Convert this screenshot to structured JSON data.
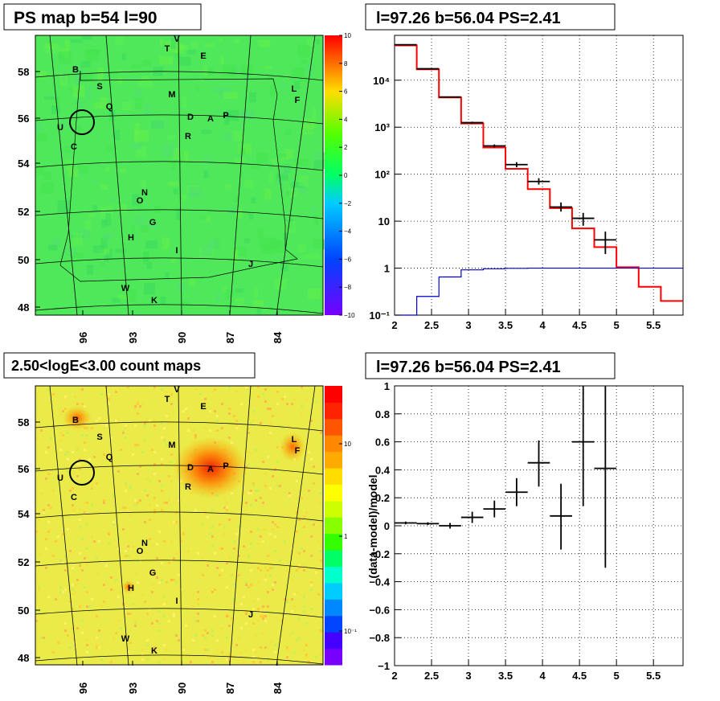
{
  "panels": {
    "tl_title": "PS map b=54 l=90",
    "tr_title": "l=97.26 b=56.04 PS=2.41",
    "bl_title": "2.50<logE<3.00 count maps",
    "br_title": "l=97.26 b=56.04 PS=2.41",
    "br_ylabel": "(data-model)/model"
  },
  "colors": {
    "red": "#ff0000",
    "blue": "#0000cc",
    "black": "#000000",
    "green": "#33ee55",
    "yellow": "#eeee44"
  },
  "maps": {
    "lon_ticks": [
      "96",
      "93",
      "90",
      "87",
      "84"
    ],
    "lat_ticks": [
      "58",
      "56",
      "54",
      "52",
      "50",
      "48"
    ],
    "source_labels": [
      "V",
      "T",
      "E",
      "B",
      "S",
      "M",
      "L",
      "F",
      "Q",
      "D",
      "A",
      "P",
      "U",
      "R",
      "C",
      "N",
      "O",
      "G",
      "H",
      "I",
      "J",
      "W",
      "K"
    ],
    "ps_palette": [
      "10",
      "8",
      "6",
      "4",
      "2",
      "0",
      "−2",
      "−4",
      "−6",
      "−8",
      "−10"
    ],
    "count_palette": [
      "10",
      "1",
      "10⁻¹"
    ]
  },
  "chart_data": [
    {
      "type": "step",
      "title": "l=97.26 b=56.04 PS=2.41",
      "xlabel": "",
      "ylabel": "",
      "xlim": [
        2,
        5.9
      ],
      "ylim": [
        0.1,
        90000
      ],
      "ylog": true,
      "xticks": [
        "2",
        "2.5",
        "3",
        "3.5",
        "4",
        "4.5",
        "5",
        "5.5"
      ],
      "yticks": [
        {
          "v": 0.1,
          "t": "10⁻¹"
        },
        {
          "v": 1,
          "t": "1"
        },
        {
          "v": 10,
          "t": "10"
        },
        {
          "v": 100,
          "t": "10²"
        },
        {
          "v": 1000,
          "t": "10³"
        },
        {
          "v": 10000,
          "t": "10⁴"
        }
      ],
      "grid": true,
      "edges": [
        2.0,
        2.3,
        2.6,
        2.9,
        3.2,
        3.5,
        3.8,
        4.1,
        4.4,
        4.7,
        5.0,
        5.3,
        5.6,
        5.9
      ],
      "series": [
        {
          "color": "red",
          "values": [
            55000,
            17000,
            4300,
            1200,
            370,
            130,
            48,
            19,
            7,
            2.8,
            1.05,
            0.4,
            0.2
          ]
        },
        {
          "color": "blue",
          "values": [
            0.08,
            0.25,
            0.65,
            0.92,
            0.97,
            0.99,
            1,
            1,
            1,
            1,
            1,
            1,
            1
          ]
        }
      ],
      "points": [
        {
          "x": 2.15,
          "y": 57000,
          "xerr": 0.15,
          "ylo": 57000,
          "yhi": 57000
        },
        {
          "x": 2.45,
          "y": 17500,
          "xerr": 0.15,
          "ylo": 17500,
          "yhi": 17500
        },
        {
          "x": 2.75,
          "y": 4400,
          "xerr": 0.15,
          "ylo": 4300,
          "yhi": 4500
        },
        {
          "x": 3.05,
          "y": 1250,
          "xerr": 0.15,
          "ylo": 1190,
          "yhi": 1310
        },
        {
          "x": 3.35,
          "y": 400,
          "xerr": 0.15,
          "ylo": 370,
          "yhi": 430
        },
        {
          "x": 3.65,
          "y": 160,
          "xerr": 0.15,
          "ylo": 140,
          "yhi": 180
        },
        {
          "x": 3.95,
          "y": 70,
          "xerr": 0.15,
          "ylo": 60,
          "yhi": 82
        },
        {
          "x": 4.25,
          "y": 20,
          "xerr": 0.15,
          "ylo": 16,
          "yhi": 25
        },
        {
          "x": 4.55,
          "y": 11.5,
          "xerr": 0.15,
          "ylo": 8,
          "yhi": 15
        },
        {
          "x": 4.85,
          "y": 4,
          "xerr": 0.15,
          "ylo": 2,
          "yhi": 6
        }
      ]
    },
    {
      "type": "scatter",
      "title": "l=97.26 b=56.04 PS=2.41",
      "xlabel": "",
      "ylabel": "(data-model)/model",
      "xlim": [
        2,
        5.9
      ],
      "ylim": [
        -1,
        1
      ],
      "xticks": [
        "2",
        "2.5",
        "3",
        "3.5",
        "4",
        "4.5",
        "5",
        "5.5"
      ],
      "yticks": [
        "1",
        "0.8",
        "0.6",
        "0.4",
        "0.2",
        "0",
        "−0.2",
        "−0.4",
        "−0.6",
        "−0.8",
        "−1"
      ],
      "grid": true,
      "points": [
        {
          "x": 2.15,
          "y": 0.02,
          "xerr": 0.15,
          "ylo": 0.01,
          "yhi": 0.03
        },
        {
          "x": 2.45,
          "y": 0.015,
          "xerr": 0.15,
          "ylo": 0.005,
          "yhi": 0.025
        },
        {
          "x": 2.75,
          "y": 0.0,
          "xerr": 0.15,
          "ylo": -0.02,
          "yhi": 0.02
        },
        {
          "x": 3.05,
          "y": 0.06,
          "xerr": 0.15,
          "ylo": 0.02,
          "yhi": 0.1
        },
        {
          "x": 3.35,
          "y": 0.12,
          "xerr": 0.15,
          "ylo": 0.06,
          "yhi": 0.18
        },
        {
          "x": 3.65,
          "y": 0.24,
          "xerr": 0.15,
          "ylo": 0.14,
          "yhi": 0.34
        },
        {
          "x": 3.95,
          "y": 0.45,
          "xerr": 0.15,
          "ylo": 0.28,
          "yhi": 0.61
        },
        {
          "x": 4.25,
          "y": 0.07,
          "xerr": 0.15,
          "ylo": -0.17,
          "yhi": 0.3
        },
        {
          "x": 4.55,
          "y": 0.6,
          "xerr": 0.15,
          "ylo": 0.14,
          "yhi": 1.0
        },
        {
          "x": 4.85,
          "y": 0.41,
          "xerr": 0.15,
          "ylo": -0.3,
          "yhi": 1.0
        }
      ]
    }
  ]
}
